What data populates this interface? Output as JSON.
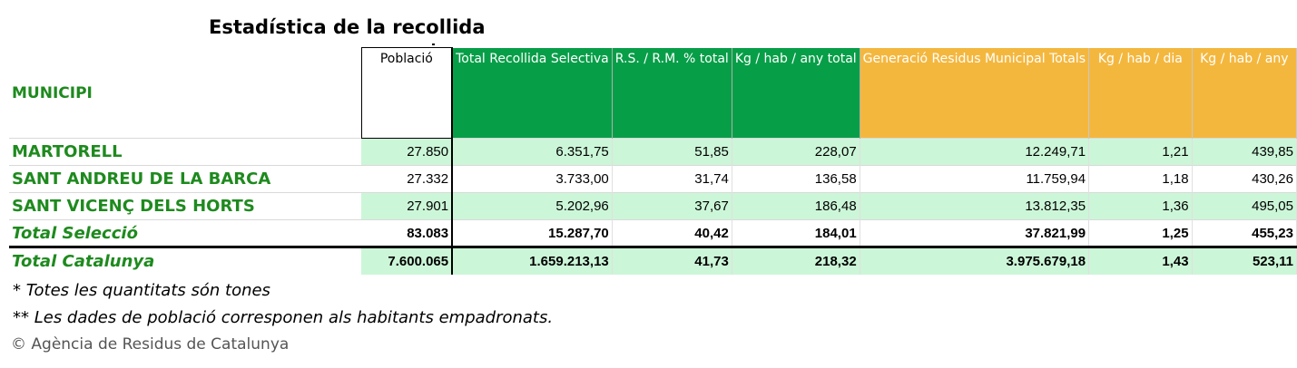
{
  "title": "Estadística de la recollida",
  "headers": {
    "municipi": "MUNICIPI",
    "poblacio": "Població",
    "total_recollida": "Total Recollida Selectiva",
    "rs_rm": "R.S. / R.M. % total",
    "kg_hab_any_total": "Kg / hab / any total",
    "generacio": "Generació Residus Municipal Totals",
    "kg_hab_dia": "Kg / hab / dia",
    "kg_hab_any": "Kg / hab / any"
  },
  "rows": [
    {
      "name": "MARTORELL",
      "values": [
        "27.850",
        "6.351,75",
        "51,85",
        "228,07",
        "12.249,71",
        "1,21",
        "439,85"
      ]
    },
    {
      "name": "SANT ANDREU DE LA BARCA",
      "values": [
        "27.332",
        "3.733,00",
        "31,74",
        "136,58",
        "11.759,94",
        "1,18",
        "430,26"
      ]
    },
    {
      "name": "SANT VICENÇ DELS HORTS",
      "values": [
        "27.901",
        "5.202,96",
        "37,67",
        "186,48",
        "13.812,35",
        "1,36",
        "495,05"
      ]
    },
    {
      "name": "Total Selecció",
      "values": [
        "83.083",
        "15.287,70",
        "40,42",
        "184,01",
        "37.821,99",
        "1,25",
        "455,23"
      ]
    },
    {
      "name": "Total Catalunya",
      "values": [
        "7.600.065",
        "1.659.213,13",
        "41,73",
        "218,32",
        "3.975.679,18",
        "1,43",
        "523,11"
      ]
    }
  ],
  "notes": [
    "* Totes les quantitats són tones",
    "** Les dades de població corresponen als habitants empadronats."
  ],
  "copyright": "© Agència de Residus de Catalunya",
  "colors": {
    "green_header": "#079e48",
    "orange_header": "#f4b73e",
    "row_green": "#ccf6d8",
    "name_green": "#1e8a1e"
  }
}
